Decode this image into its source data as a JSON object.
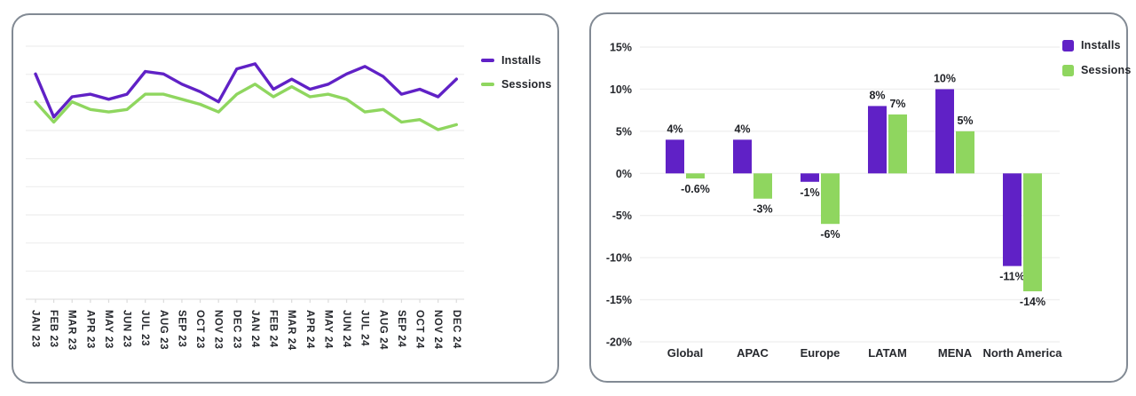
{
  "page": {
    "background": "#ffffff"
  },
  "colors": {
    "installs": "#6021c6",
    "sessions": "#8fd65f",
    "card_border": "#828a94",
    "grid_line": "#f0f0f0",
    "axis_line": "#e7e7e7",
    "axis_text": "#26282d",
    "data_label_text": "#1f2126"
  },
  "chart_data": [
    {
      "type": "line",
      "title": "",
      "x": [
        "JAN 23",
        "FEB 23",
        "MAR 23",
        "APR 23",
        "MAY 23",
        "JUN 23",
        "JUL 23",
        "AUG 23",
        "SEP 23",
        "OCT 23",
        "NOV 23",
        "DEC 23",
        "JAN 24",
        "FEB 24",
        "MAR 24",
        "APR 24",
        "MAY 24",
        "JUN 24",
        "JUL 24",
        "AUG 24",
        "SEP 24",
        "OCT 24",
        "NOV 24",
        "DEC 24"
      ],
      "series": [
        {
          "name": "Installs",
          "color": "#6021c6",
          "values": [
            89,
            72,
            80,
            81,
            79,
            81,
            90,
            89,
            85,
            82,
            78,
            91,
            93,
            83,
            87,
            83,
            85,
            89,
            92,
            88,
            81,
            83,
            80,
            87
          ]
        },
        {
          "name": "Sessions",
          "color": "#8fd65f",
          "values": [
            78,
            70,
            78,
            75,
            74,
            75,
            81,
            81,
            79,
            77,
            74,
            81,
            85,
            80,
            84,
            80,
            81,
            79,
            74,
            75,
            70,
            71,
            67,
            69
          ]
        }
      ],
      "y_axis": {
        "tick_labels_visible": false,
        "gridline_count": 9,
        "value_scale": "normalized 0-100 estimate"
      },
      "legend_position": "right-top",
      "grid": true
    },
    {
      "type": "bar",
      "title": "",
      "categories": [
        "Global",
        "APAC",
        "Europe",
        "LATAM",
        "MENA",
        "North America"
      ],
      "series": [
        {
          "name": "Installs",
          "color": "#6021c6",
          "values": [
            4,
            4,
            -1,
            8,
            10,
            -11
          ],
          "data_labels": [
            "4%",
            "4%",
            "-1%",
            "8%",
            "10%",
            "-11%"
          ]
        },
        {
          "name": "Sessions",
          "color": "#8fd65f",
          "values": [
            -0.6,
            -3,
            -6,
            7,
            5,
            -14
          ],
          "data_labels": [
            "-0.6%",
            "-3%",
            "-6%",
            "7%",
            "5%",
            "-14%"
          ]
        }
      ],
      "y_ticks": [
        "15%",
        "10%",
        "5%",
        "0%",
        "-5%",
        "-10%",
        "-15%",
        "-20%"
      ],
      "ylim": [
        -20,
        15
      ],
      "grid": true,
      "legend_position": "top-right"
    }
  ]
}
